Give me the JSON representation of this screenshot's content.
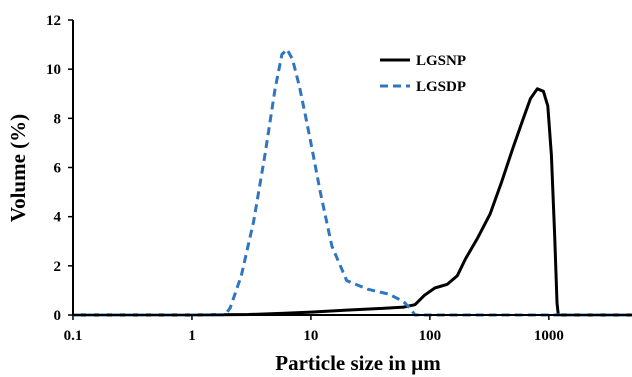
{
  "chart_data": {
    "type": "line",
    "title": "",
    "xlabel": "Particle size in µm",
    "ylabel": "Volume (%)",
    "x_scale": "log",
    "xlim": [
      0.1,
      5000
    ],
    "ylim": [
      0,
      12
    ],
    "x_ticks": [
      0.1,
      1,
      10,
      100,
      1000
    ],
    "x_tick_labels": [
      "0.1",
      "1",
      "10",
      "100",
      "1000"
    ],
    "y_ticks": [
      0,
      2,
      4,
      6,
      8,
      10,
      12
    ],
    "y_tick_labels": [
      "0",
      "2",
      "4",
      "6",
      "8",
      "10",
      "12"
    ],
    "grid": false,
    "legend_position": "top-right",
    "series": [
      {
        "name": "LGSNP",
        "color": "#000000",
        "dash": "solid",
        "points": [
          [
            0.1,
            0
          ],
          [
            1,
            0
          ],
          [
            3,
            0.02
          ],
          [
            6,
            0.07
          ],
          [
            10,
            0.12
          ],
          [
            20,
            0.2
          ],
          [
            40,
            0.27
          ],
          [
            60,
            0.32
          ],
          [
            75,
            0.42
          ],
          [
            90,
            0.8
          ],
          [
            110,
            1.1
          ],
          [
            140,
            1.25
          ],
          [
            170,
            1.6
          ],
          [
            200,
            2.3
          ],
          [
            250,
            3.1
          ],
          [
            320,
            4.1
          ],
          [
            400,
            5.4
          ],
          [
            500,
            6.8
          ],
          [
            600,
            7.9
          ],
          [
            700,
            8.8
          ],
          [
            800,
            9.2
          ],
          [
            900,
            9.1
          ],
          [
            980,
            8.5
          ],
          [
            1050,
            6.5
          ],
          [
            1120,
            3.2
          ],
          [
            1170,
            0.5
          ],
          [
            1200,
            0
          ],
          [
            5000,
            0
          ]
        ]
      },
      {
        "name": "LGSDP",
        "color": "#2f75c0",
        "dash": "dashed",
        "points": [
          [
            0.1,
            0
          ],
          [
            1,
            0
          ],
          [
            1.9,
            0
          ],
          [
            2.1,
            0.3
          ],
          [
            2.6,
            1.6
          ],
          [
            3.3,
            3.8
          ],
          [
            4.1,
            6.5
          ],
          [
            5,
            9.2
          ],
          [
            5.7,
            10.6
          ],
          [
            6.3,
            10.8
          ],
          [
            7,
            10.4
          ],
          [
            8,
            9.3
          ],
          [
            9,
            8.1
          ],
          [
            10,
            7
          ],
          [
            12,
            5
          ],
          [
            15,
            2.8
          ],
          [
            20,
            1.4
          ],
          [
            30,
            1.05
          ],
          [
            45,
            0.85
          ],
          [
            60,
            0.55
          ],
          [
            70,
            0.2
          ],
          [
            75,
            0
          ],
          [
            5000,
            0
          ]
        ]
      }
    ]
  }
}
